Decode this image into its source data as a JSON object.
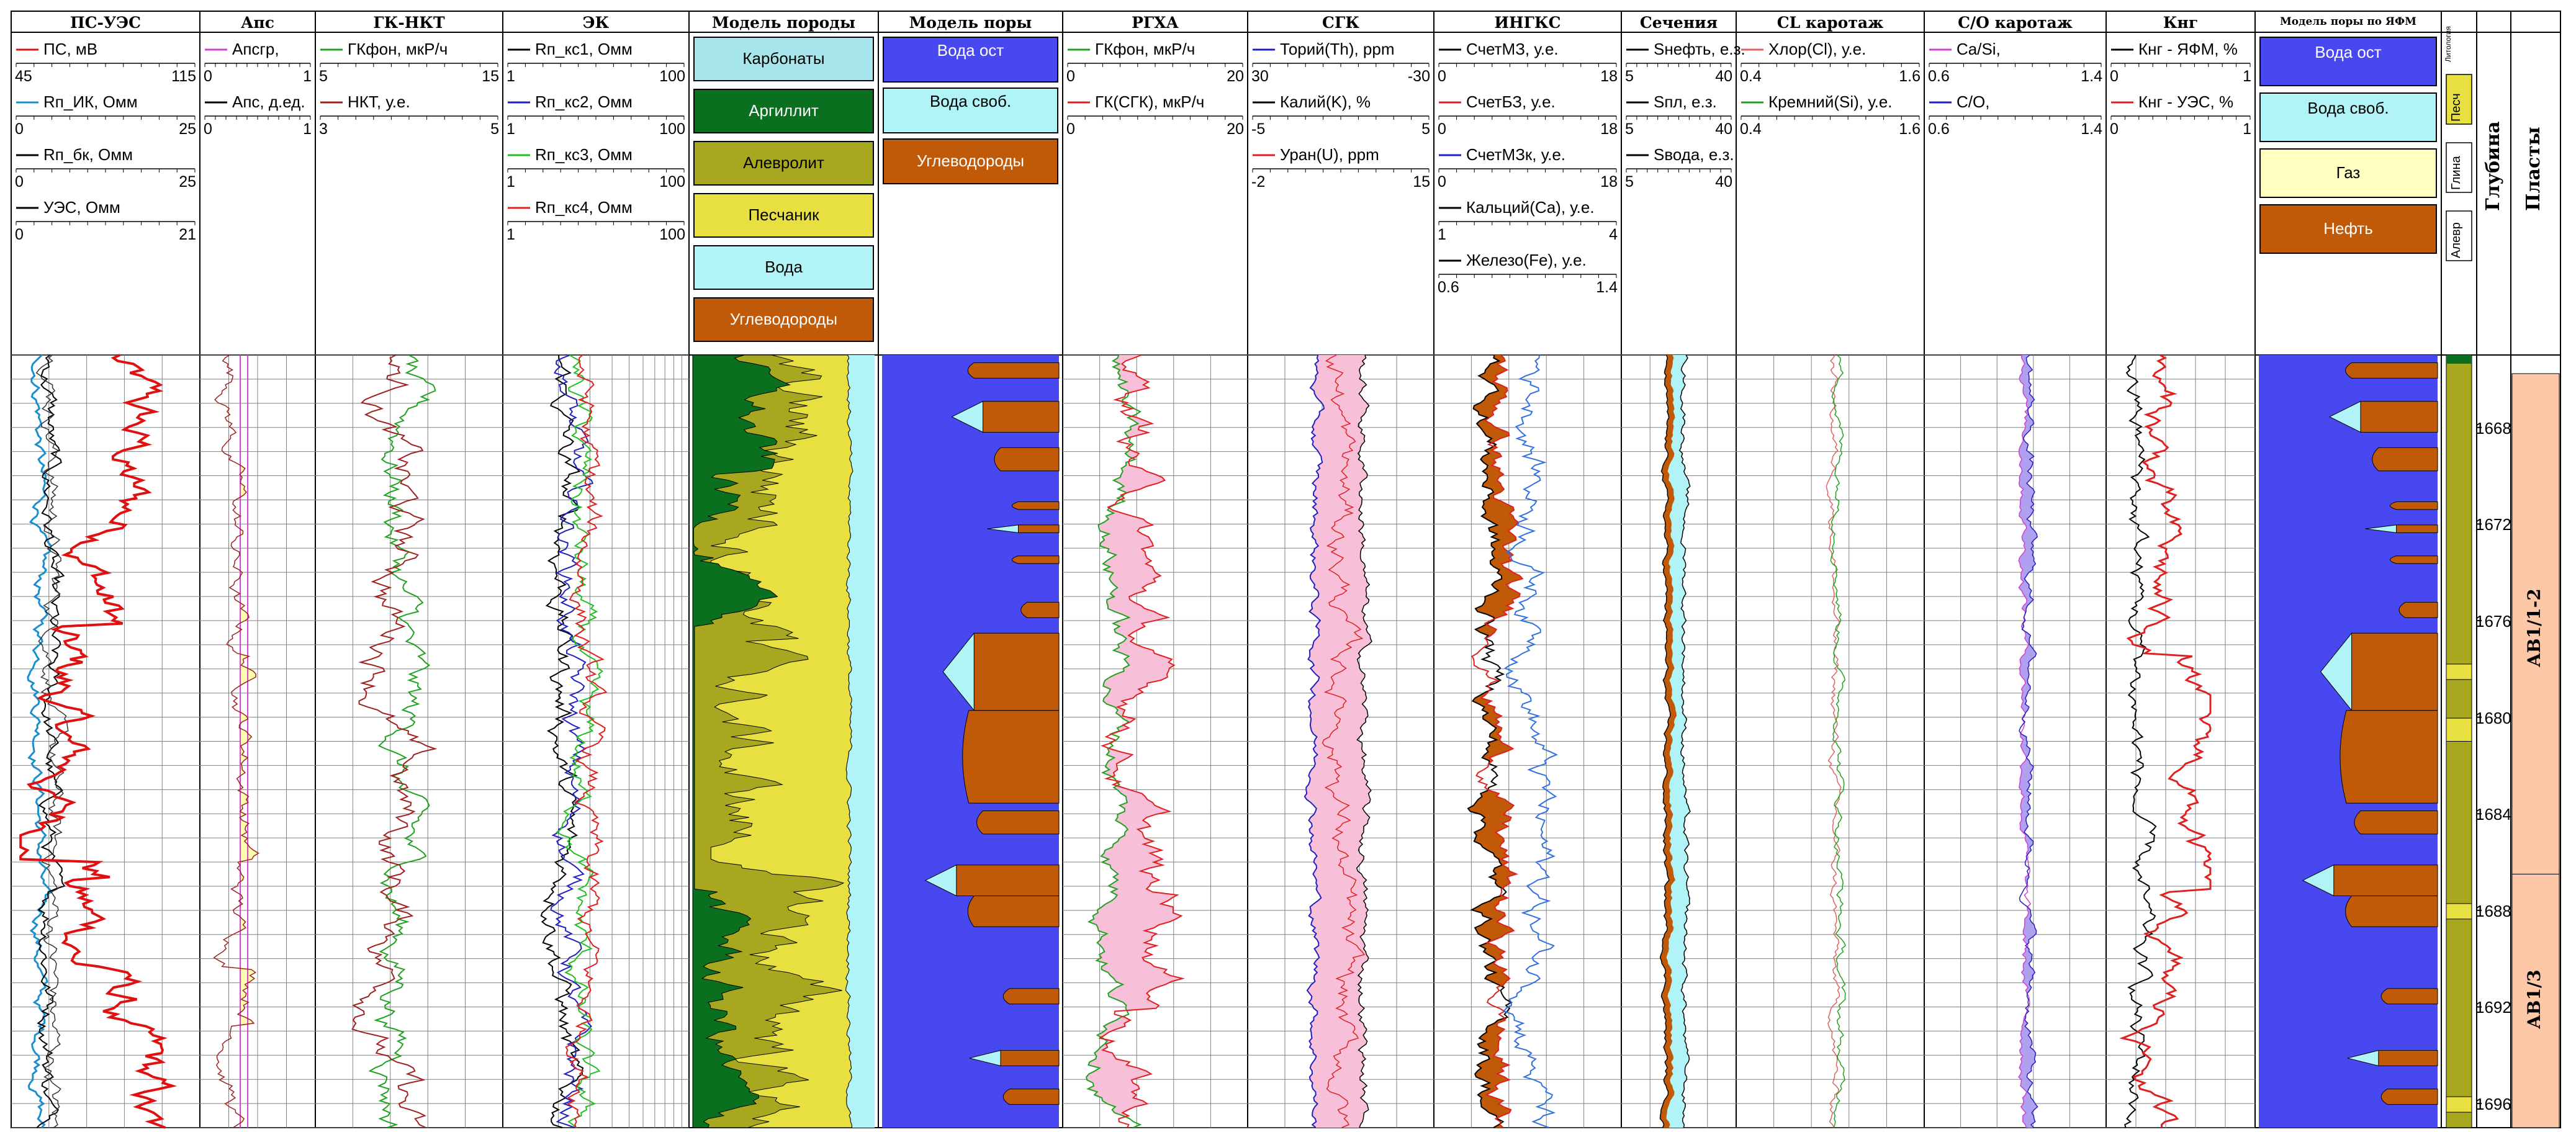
{
  "chart_data": {
    "type": "line",
    "depth_range": [
      1665,
      1697
    ],
    "depth_ticks": [
      "1668",
      "1672",
      "1676",
      "1680",
      "1684",
      "1688",
      "1692",
      "1696"
    ],
    "grid": true,
    "tracks": [
      {
        "title": "ПС-УЭС",
        "curves": [
          {
            "name": "ПС, мВ",
            "color": "#e01010",
            "scale": [
              "45",
              "115"
            ]
          },
          {
            "name": "Rп_ИК, Омм",
            "color": "#1a8fd0",
            "scale": [
              "0",
              "25"
            ]
          },
          {
            "name": "Rп_бк, Омм",
            "color": "#000000",
            "scale": [
              "0",
              "25"
            ]
          },
          {
            "name": "УЭС, Омм",
            "color": "#000000",
            "scale": [
              "0",
              "21"
            ]
          }
        ]
      },
      {
        "title": "Апс",
        "curves": [
          {
            "name": "Апсгр,",
            "color": "#d040d0",
            "scale": [
              "0",
              "1"
            ]
          },
          {
            "name": "Апс, д.ед.",
            "color": "#000000",
            "scale": [
              "0",
              "1"
            ]
          }
        ]
      },
      {
        "title": "ГК-НКТ",
        "curves": [
          {
            "name": "ГКфон, мкР/ч",
            "color": "#20a020",
            "scale": [
              "5",
              "15"
            ]
          },
          {
            "name": "НКТ, у.е.",
            "color": "#a02020",
            "scale": [
              "3",
              "5"
            ]
          }
        ]
      },
      {
        "title": "ЭК",
        "curves": [
          {
            "name": "Rп_кс1, Омм",
            "color": "#000000",
            "scale": [
              "1",
              "100"
            ]
          },
          {
            "name": "Rп_кс2, Омм",
            "color": "#2020c0",
            "scale": [
              "1",
              "100"
            ]
          },
          {
            "name": "Rп_кс3, Омм",
            "color": "#20c020",
            "scale": [
              "1",
              "100"
            ]
          },
          {
            "name": "Rп_кс4, Омм",
            "color": "#e02020",
            "scale": [
              "1",
              "100"
            ]
          }
        ]
      },
      {
        "title": "Модель породы",
        "legend": [
          "Карбонаты",
          "Аргиллит",
          "Алевролит",
          "Песчаник",
          "Вода",
          "Углеводороды"
        ]
      },
      {
        "title": "Модель поры",
        "legend": [
          "Вода\nост",
          "Вода\nсвоб.",
          "Углеводороды"
        ]
      },
      {
        "title": "РГХА",
        "curves": [
          {
            "name": "ГКфон, мкР/ч",
            "color": "#20a020",
            "scale": [
              "0",
              "20"
            ]
          },
          {
            "name": "ГК(СГК), мкР/ч",
            "color": "#e02020",
            "scale": [
              "0",
              "20"
            ]
          }
        ]
      },
      {
        "title": "СГК",
        "curves": [
          {
            "name": "Торий(Th), ppm",
            "color": "#2020c0",
            "scale": [
              "30",
              "-30"
            ]
          },
          {
            "name": "Калий(K), %",
            "color": "#000000",
            "scale": [
              "-5",
              "5"
            ]
          },
          {
            "name": "Уран(U), ppm",
            "color": "#e02020",
            "scale": [
              "-2",
              "15"
            ]
          }
        ]
      },
      {
        "title": "ИНГКС",
        "curves": [
          {
            "name": "СчетМЗ, у.е.",
            "color": "#000000",
            "scale": [
              "0",
              "18"
            ]
          },
          {
            "name": "СчетБЗ, у.е.",
            "color": "#e02020",
            "scale": [
              "0",
              "18"
            ]
          },
          {
            "name": "СчетМЗк, у.е.",
            "color": "#2020c0",
            "scale": [
              "0",
              "18"
            ]
          },
          {
            "name": "Кальций(Ca), у.е.",
            "color": "#000000",
            "scale": [
              "1",
              "4"
            ]
          },
          {
            "name": "Железо(Fe), у.е.",
            "color": "#000000",
            "scale": [
              "0.6",
              "1.4"
            ]
          }
        ]
      },
      {
        "title": "Сечения",
        "curves": [
          {
            "name": "Sнефть, е.з.",
            "color": "#000000",
            "scale": [
              "5",
              "40"
            ]
          },
          {
            "name": "Sпл, е.з.",
            "color": "#000000",
            "scale": [
              "5",
              "40"
            ]
          },
          {
            "name": "Sвода, е.з.",
            "color": "#000000",
            "scale": [
              "5",
              "40"
            ]
          }
        ]
      },
      {
        "title": "CL каротаж",
        "curves": [
          {
            "name": "Хлор(Cl), у.е.",
            "color": "#e06060",
            "scale": [
              "0.4",
              "1.6"
            ]
          },
          {
            "name": "Кремний(Si), у.е.",
            "color": "#20a020",
            "scale": [
              "0.4",
              "1.6"
            ]
          }
        ]
      },
      {
        "title": "C/O каротаж",
        "curves": [
          {
            "name": "Ca/Si,",
            "color": "#d040d0",
            "scale": [
              "0.6",
              "1.4"
            ]
          },
          {
            "name": "C/O,",
            "color": "#2020c0",
            "scale": [
              "0.6",
              "1.4"
            ]
          }
        ]
      },
      {
        "title": "Кнг",
        "curves": [
          {
            "name": "Кнг - ЯФМ, %",
            "color": "#000000",
            "scale": [
              "0",
              "1"
            ]
          },
          {
            "name": "Кнг - УЭС, %",
            "color": "#e02020",
            "scale": [
              "0",
              "1"
            ]
          }
        ]
      },
      {
        "title": "Модель поры по ЯФМ",
        "legend": [
          "Вода\nост",
          "Вода\nсвоб.",
          "Газ",
          "Нефть"
        ]
      },
      {
        "title": "Литология",
        "legend": [
          "Песч",
          "Глина",
          "Алевр"
        ]
      },
      {
        "title": "Глубина"
      },
      {
        "title": "Пласты",
        "zones": [
          "АВ1/1-2",
          "АВ1/3"
        ]
      }
    ],
    "colors": {
      "carbonate": "#a8e6ee",
      "argillite": "#0a7020",
      "siltstone": "#a8a820",
      "sandstone": "#e8e040",
      "water": "#b0f4f8",
      "hydrocarbon": "#c05a08",
      "water_bound": "#4848f0",
      "gas": "#ffffc0",
      "zone": "#fcc8a8",
      "gk_fill": "#f8c0d8",
      "aps_fill": "#ffffb0"
    }
  }
}
